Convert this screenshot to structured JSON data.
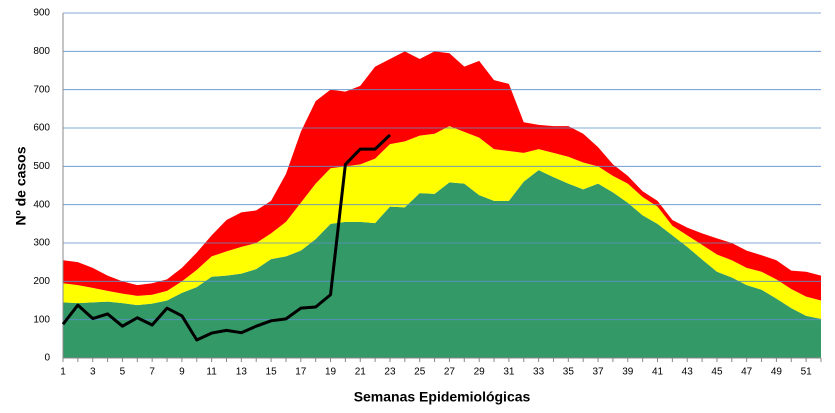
{
  "chart_data": {
    "type": "stacked_area",
    "xlabel": "Semanas Epidemiológicas",
    "ylabel": "Nº de casos",
    "categories": [
      1,
      null,
      3,
      null,
      5,
      null,
      7,
      null,
      9,
      null,
      11,
      null,
      13,
      null,
      15,
      null,
      17,
      null,
      19,
      null,
      21,
      null,
      23,
      null,
      25,
      null,
      27,
      null,
      29,
      null,
      31,
      null,
      33,
      null,
      35,
      null,
      37,
      null,
      39,
      null,
      41,
      null,
      43,
      null,
      45,
      null,
      47,
      null,
      49,
      null,
      51,
      null
    ],
    "ylim": [
      0,
      900
    ],
    "yticks": [
      0,
      100,
      200,
      300,
      400,
      500,
      600,
      700,
      800,
      900
    ],
    "grid": true,
    "series": [
      {
        "color": "#339966",
        "stack": true,
        "values": [
          145,
          143,
          145,
          147,
          143,
          138,
          142,
          150,
          170,
          185,
          212,
          215,
          220,
          232,
          258,
          265,
          280,
          310,
          350,
          355,
          355,
          352,
          395,
          393,
          430,
          428,
          458,
          455,
          425,
          410,
          410,
          460,
          490,
          472,
          455,
          440,
          455,
          432,
          405,
          372,
          350,
          320,
          290,
          257,
          225,
          210,
          190,
          178,
          155,
          130,
          110,
          102
        ]
      },
      {
        "color": "#ffff00",
        "stack": true,
        "values": [
          50,
          47,
          38,
          28,
          25,
          24,
          23,
          25,
          30,
          45,
          53,
          63,
          70,
          68,
          67,
          90,
          125,
          145,
          145,
          145,
          150,
          168,
          163,
          172,
          150,
          157,
          147,
          135,
          150,
          135,
          130,
          75,
          55,
          63,
          70,
          70,
          45,
          43,
          50,
          48,
          45,
          25,
          30,
          38,
          45,
          45,
          45,
          47,
          50,
          50,
          50,
          48
        ]
      },
      {
        "color": "#ff0000",
        "stack": true,
        "values": [
          60,
          60,
          52,
          40,
          32,
          28,
          30,
          30,
          35,
          45,
          55,
          82,
          90,
          85,
          85,
          125,
          185,
          215,
          205,
          195,
          205,
          240,
          222,
          235,
          200,
          215,
          190,
          170,
          200,
          180,
          175,
          80,
          63,
          70,
          80,
          75,
          50,
          30,
          20,
          15,
          15,
          15,
          20,
          30,
          42,
          45,
          45,
          43,
          50,
          48,
          65,
          65
        ]
      },
      {
        "color": "#000000",
        "stack": false,
        "values": [
          88,
          138,
          103,
          115,
          83,
          105,
          86,
          130,
          110,
          47,
          65,
          72,
          66,
          83,
          97,
          102,
          130,
          133,
          165,
          505,
          545,
          545,
          582,
          null,
          null,
          null,
          null,
          null,
          null,
          null,
          null,
          null,
          null,
          null,
          null,
          null,
          null,
          null,
          null,
          null,
          null,
          null,
          null,
          null,
          null,
          null,
          null,
          null,
          null,
          null,
          null,
          null
        ]
      }
    ]
  }
}
